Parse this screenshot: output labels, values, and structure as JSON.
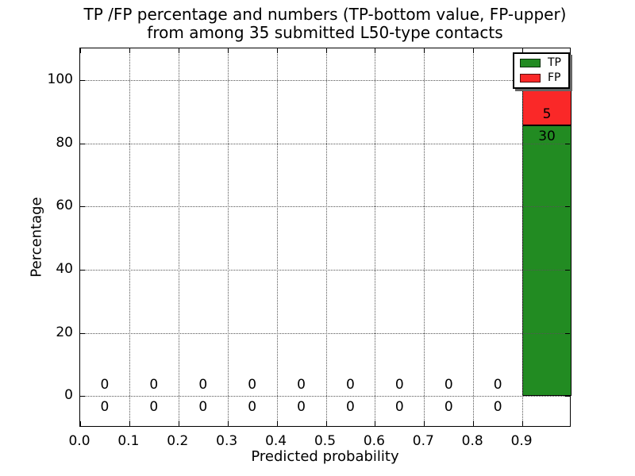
{
  "chart_data": {
    "type": "bar",
    "title_lines": [
      "TP /FP percentage and numbers (TP-bottom value, FP-upper)",
      "from among 35 submitted L50-type contacts"
    ],
    "xlabel": "Predicted probability",
    "ylabel": "Percentage",
    "xlim": [
      0.0,
      1.0
    ],
    "ylim": [
      -10,
      110
    ],
    "xticks": [
      0.0,
      0.1,
      0.2,
      0.3,
      0.4,
      0.5,
      0.6,
      0.7,
      0.8,
      0.9
    ],
    "xtick_labels": [
      "0.0",
      "0.1",
      "0.2",
      "0.3",
      "0.4",
      "0.5",
      "0.6",
      "0.7",
      "0.8",
      "0.9"
    ],
    "yticks": [
      0,
      20,
      40,
      60,
      80,
      100
    ],
    "ytick_labels": [
      "0",
      "20",
      "40",
      "60",
      "80",
      "100"
    ],
    "grid": true,
    "grid_style": "dotted",
    "total_submitted": 35,
    "bin_width": 0.1,
    "bin_centers": [
      0.05,
      0.15,
      0.25,
      0.35,
      0.45,
      0.55,
      0.65,
      0.75,
      0.85,
      0.95
    ],
    "series": [
      {
        "name": "TP",
        "color": "#228b22",
        "counts": [
          0,
          0,
          0,
          0,
          0,
          0,
          0,
          0,
          0,
          30
        ],
        "percent_last_bin": 85.71
      },
      {
        "name": "FP",
        "color": "#fa2828",
        "counts": [
          0,
          0,
          0,
          0,
          0,
          0,
          0,
          0,
          0,
          5
        ],
        "percent_last_bin": 14.29
      }
    ],
    "legend": {
      "position": "upper right",
      "labels": [
        "TP",
        "FP"
      ]
    }
  }
}
